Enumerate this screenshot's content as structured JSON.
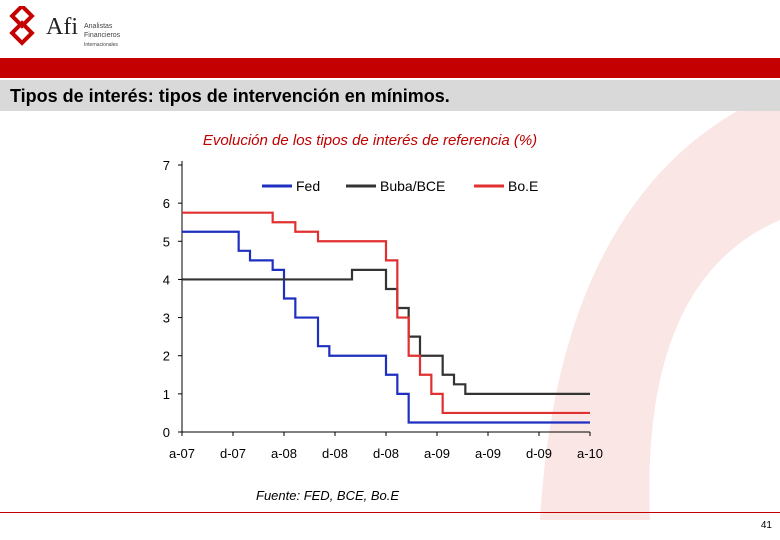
{
  "header": {
    "logo_text": "Afi",
    "logo_sub_1": "Analistas",
    "logo_sub_2": "Financieros",
    "logo_sub_3": "Internacionales"
  },
  "slide": {
    "title": "Tipos de interés: tipos de intervención en mínimos.",
    "source": "Fuente: FED, BCE, Bo.E",
    "page_number": "41"
  },
  "colors": {
    "accent": "#c40000",
    "fed": "#1f2fbf",
    "ecb": "#333333",
    "boe": "#e03030"
  },
  "chart_data": {
    "type": "line",
    "title": "Evolución de los tipos de interés de referencia (%)",
    "xlabel": "",
    "ylabel": "",
    "ylim": [
      0,
      7
    ],
    "yticks": [
      0,
      1,
      2,
      3,
      4,
      5,
      6,
      7
    ],
    "xlim": [
      "2007-04",
      "2010-04"
    ],
    "xtick_labels": [
      "a-07",
      "d-07",
      "a-08",
      "d-08",
      "d-08",
      "a-09",
      "a-09",
      "d-09",
      "a-10"
    ],
    "grid": false,
    "legend": "top",
    "series": [
      {
        "name": "Fed",
        "color": "#1f2fbf",
        "points": [
          [
            "2007-04",
            5.25
          ],
          [
            "2007-09",
            4.75
          ],
          [
            "2007-10",
            4.5
          ],
          [
            "2007-12",
            4.25
          ],
          [
            "2008-01",
            3.5
          ],
          [
            "2008-02",
            3.0
          ],
          [
            "2008-04",
            2.25
          ],
          [
            "2008-05",
            2.0
          ],
          [
            "2008-10",
            1.5
          ],
          [
            "2008-11",
            1.0
          ],
          [
            "2008-12",
            0.25
          ],
          [
            "2010-04",
            0.25
          ]
        ]
      },
      {
        "name": "Buba/BCE",
        "color": "#333333",
        "points": [
          [
            "2007-04",
            4.0
          ],
          [
            "2008-07",
            4.25
          ],
          [
            "2008-10",
            3.75
          ],
          [
            "2008-11",
            3.25
          ],
          [
            "2008-12",
            2.5
          ],
          [
            "2009-01",
            2.0
          ],
          [
            "2009-03",
            1.5
          ],
          [
            "2009-04",
            1.25
          ],
          [
            "2009-05",
            1.0
          ],
          [
            "2010-04",
            1.0
          ]
        ]
      },
      {
        "name": "Bo.E",
        "color": "#e03030",
        "points": [
          [
            "2007-04",
            5.75
          ],
          [
            "2007-12",
            5.5
          ],
          [
            "2008-02",
            5.25
          ],
          [
            "2008-04",
            5.0
          ],
          [
            "2008-10",
            4.5
          ],
          [
            "2008-11",
            3.0
          ],
          [
            "2008-12",
            2.0
          ],
          [
            "2009-01",
            1.5
          ],
          [
            "2009-02",
            1.0
          ],
          [
            "2009-03",
            0.5
          ],
          [
            "2010-04",
            0.5
          ]
        ]
      }
    ]
  }
}
